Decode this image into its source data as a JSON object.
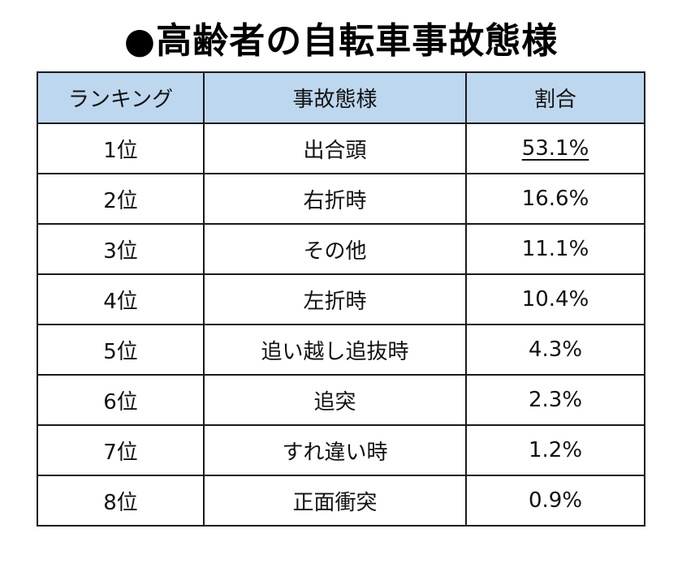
{
  "title": "●高齢者の自転車事故態様",
  "table": {
    "headers": [
      "ランキング",
      "事故態様",
      "割合"
    ],
    "rows": [
      {
        "rank": "1位",
        "type": "出合頭",
        "ratio": "53.1%"
      },
      {
        "rank": "2位",
        "type": "右折時",
        "ratio": "16.6%"
      },
      {
        "rank": "3位",
        "type": "その他",
        "ratio": "11.1%"
      },
      {
        "rank": "4位",
        "type": "左折時",
        "ratio": "10.4%"
      },
      {
        "rank": "5位",
        "type": "追い越し追抜時",
        "ratio": "4.3%"
      },
      {
        "rank": "6位",
        "type": "追突",
        "ratio": "2.3%"
      },
      {
        "rank": "7位",
        "type": "すれ違い時",
        "ratio": "1.2%"
      },
      {
        "rank": "8位",
        "type": "正面衝突",
        "ratio": "0.9%"
      }
    ]
  },
  "colors": {
    "header_bg": "#bdd7ee",
    "border": "#1a1a1a"
  }
}
